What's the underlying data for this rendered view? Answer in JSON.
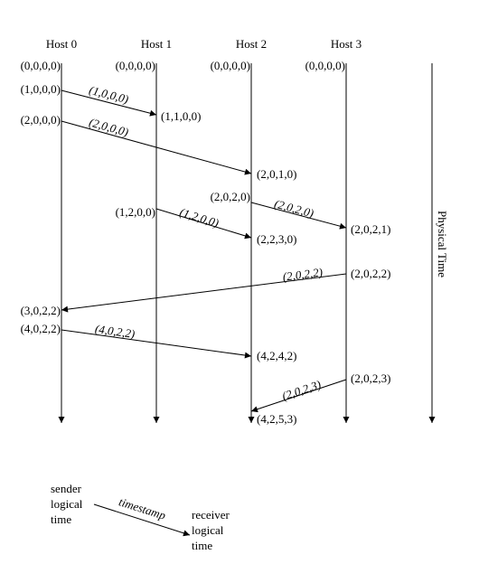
{
  "timelines": [
    {
      "host": "Host 0",
      "clocks": [
        "(0,0,0,0)",
        "(1,0,0,0)",
        "(2,0,0,0)",
        "(3,0,2,2)",
        "(4,0,2,2)"
      ]
    },
    {
      "host": "Host 1",
      "clocks": [
        "(0,0,0,0)",
        "(1,1,0,0)",
        "(1,2,0,0)"
      ]
    },
    {
      "host": "Host 2",
      "clocks": [
        "(0,0,0,0)",
        "(2,0,1,0)",
        "(2,0,2,0)",
        "(2,2,3,0)",
        "(4,2,4,2)",
        "(4,2,5,3)"
      ]
    },
    {
      "host": "Host 3",
      "clocks": [
        "(0,0,0,0)",
        "(2,0,2,1)",
        "(2,0,2,2)",
        "(2,0,2,3)"
      ]
    }
  ],
  "messages": [
    "(1,0,0,0)",
    "(2,0,0,0)",
    "(1,2,0,0)",
    "(2,0,2,0)",
    "(2,0,2,2)",
    "(4,0,2,2)",
    "(2,0,2,3)"
  ],
  "time_axis_label": "Physical Time",
  "legend": {
    "sender": [
      "sender",
      "logical",
      "time"
    ],
    "label": "timestamp",
    "receiver": [
      "receiver",
      "logical",
      "time"
    ]
  }
}
